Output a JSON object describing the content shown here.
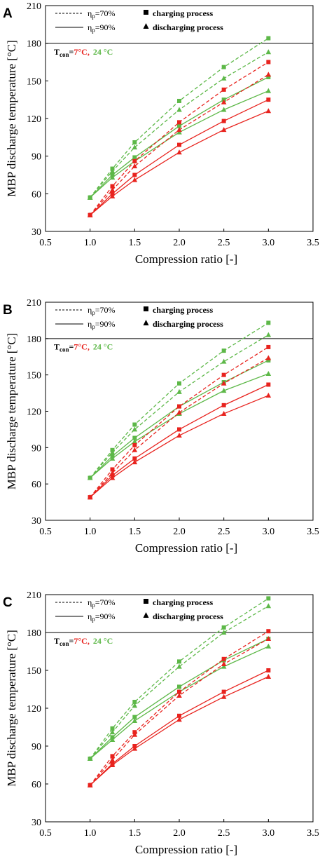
{
  "colors": {
    "red": "#E8231E",
    "green": "#5DB848",
    "black": "#000000"
  },
  "legend": {
    "eta_symbol": "η",
    "eta_sub": "p",
    "eta70": "=70%",
    "eta90": "=90%",
    "charging": "charging process",
    "discharging": "discharging process"
  },
  "conditions": {
    "prefix": "T",
    "prefix_sub": "con",
    "eq": "=",
    "red_value": "7°C,",
    "green_value": "24 °C"
  },
  "chart_data": [
    {
      "panel": "A",
      "type": "line",
      "xlabel": "Compression ratio [-]",
      "ylabel": "MBP discharge temperature [°C]",
      "xlim": [
        0.5,
        3.5
      ],
      "ylim": [
        30,
        210
      ],
      "xticks": [
        "0.5",
        "1.0",
        "1.5",
        "2.0",
        "2.5",
        "3.0",
        "3.5"
      ],
      "yticks": [
        "30",
        "60",
        "90",
        "120",
        "150",
        "180",
        "210"
      ],
      "reference_line": 180,
      "x": [
        1.0,
        1.25,
        1.5,
        2.0,
        2.5,
        3.0
      ],
      "series": [
        {
          "color": "green",
          "eta": "70%",
          "process": "charging",
          "values": [
            57,
            80,
            101,
            134,
            161,
            184
          ]
        },
        {
          "color": "green",
          "eta": "70%",
          "process": "discharging",
          "values": [
            57,
            78,
            97,
            127,
            152,
            173
          ]
        },
        {
          "color": "green",
          "eta": "90%",
          "process": "charging",
          "values": [
            57,
            75,
            89,
            114,
            135,
            153
          ]
        },
        {
          "color": "green",
          "eta": "90%",
          "process": "discharging",
          "values": [
            57,
            73,
            86,
            109,
            127,
            142
          ]
        },
        {
          "color": "red",
          "eta": "70%",
          "process": "charging",
          "values": [
            43,
            66,
            86,
            117,
            143,
            165
          ]
        },
        {
          "color": "red",
          "eta": "70%",
          "process": "discharging",
          "values": [
            43,
            63,
            82,
            111,
            133,
            155
          ]
        },
        {
          "color": "red",
          "eta": "90%",
          "process": "charging",
          "values": [
            43,
            60,
            75,
            99,
            118,
            135
          ]
        },
        {
          "color": "red",
          "eta": "90%",
          "process": "discharging",
          "values": [
            43,
            58,
            71,
            93,
            111,
            126
          ]
        }
      ]
    },
    {
      "panel": "B",
      "type": "line",
      "xlabel": "Compression ratio [-]",
      "ylabel": "MBP discharge temperature [°C]",
      "xlim": [
        0.5,
        3.5
      ],
      "ylim": [
        30,
        210
      ],
      "xticks": [
        "0.5",
        "1.0",
        "1.5",
        "2.0",
        "2.5",
        "3.0",
        "3.5"
      ],
      "yticks": [
        "30",
        "60",
        "90",
        "120",
        "150",
        "180",
        "210"
      ],
      "reference_line": 180,
      "x": [
        1.0,
        1.25,
        1.5,
        2.0,
        2.5,
        3.0
      ],
      "series": [
        {
          "color": "green",
          "eta": "70%",
          "process": "charging",
          "values": [
            65,
            88,
            109,
            143,
            170,
            193
          ]
        },
        {
          "color": "green",
          "eta": "70%",
          "process": "discharging",
          "values": [
            65,
            86,
            105,
            136,
            161,
            183
          ]
        },
        {
          "color": "green",
          "eta": "90%",
          "process": "charging",
          "values": [
            65,
            83,
            98,
            124,
            144,
            162
          ]
        },
        {
          "color": "green",
          "eta": "90%",
          "process": "discharging",
          "values": [
            65,
            81,
            95,
            118,
            137,
            151
          ]
        },
        {
          "color": "red",
          "eta": "70%",
          "process": "charging",
          "values": [
            49,
            72,
            92,
            124,
            150,
            173
          ]
        },
        {
          "color": "red",
          "eta": "70%",
          "process": "discharging",
          "values": [
            49,
            69,
            88,
            119,
            143,
            164
          ]
        },
        {
          "color": "red",
          "eta": "90%",
          "process": "charging",
          "values": [
            49,
            67,
            81,
            105,
            125,
            142
          ]
        },
        {
          "color": "red",
          "eta": "90%",
          "process": "discharging",
          "values": [
            49,
            65,
            78,
            100,
            118,
            133
          ]
        }
      ]
    },
    {
      "panel": "C",
      "type": "line",
      "xlabel": "Compression ratio [-]",
      "ylabel": "MBP discharge temperature [°C]",
      "xlim": [
        0.5,
        3.5
      ],
      "ylim": [
        30,
        210
      ],
      "xticks": [
        "0.5",
        "1.0",
        "1.5",
        "2.0",
        "2.5",
        "3.0",
        "3.5"
      ],
      "yticks": [
        "30",
        "60",
        "90",
        "120",
        "150",
        "180",
        "210"
      ],
      "reference_line": 180,
      "x": [
        1.0,
        1.25,
        1.5,
        2.0,
        2.5,
        3.0
      ],
      "series": [
        {
          "color": "green",
          "eta": "70%",
          "process": "charging",
          "values": [
            80,
            104,
            125,
            157,
            184,
            207
          ]
        },
        {
          "color": "green",
          "eta": "70%",
          "process": "discharging",
          "values": [
            80,
            101,
            122,
            153,
            180,
            201
          ]
        },
        {
          "color": "green",
          "eta": "90%",
          "process": "charging",
          "values": [
            80,
            97,
            113,
            137,
            158,
            175
          ]
        },
        {
          "color": "green",
          "eta": "90%",
          "process": "discharging",
          "values": [
            80,
            95,
            110,
            133,
            153,
            169
          ]
        },
        {
          "color": "red",
          "eta": "70%",
          "process": "charging",
          "values": [
            59,
            82,
            101,
            133,
            159,
            181
          ]
        },
        {
          "color": "red",
          "eta": "70%",
          "process": "discharging",
          "values": [
            59,
            79,
            99,
            130,
            155,
            175
          ]
        },
        {
          "color": "red",
          "eta": "90%",
          "process": "charging",
          "values": [
            59,
            76,
            90,
            114,
            133,
            150
          ]
        },
        {
          "color": "red",
          "eta": "90%",
          "process": "discharging",
          "values": [
            59,
            75,
            88,
            111,
            129,
            145
          ]
        }
      ]
    }
  ]
}
